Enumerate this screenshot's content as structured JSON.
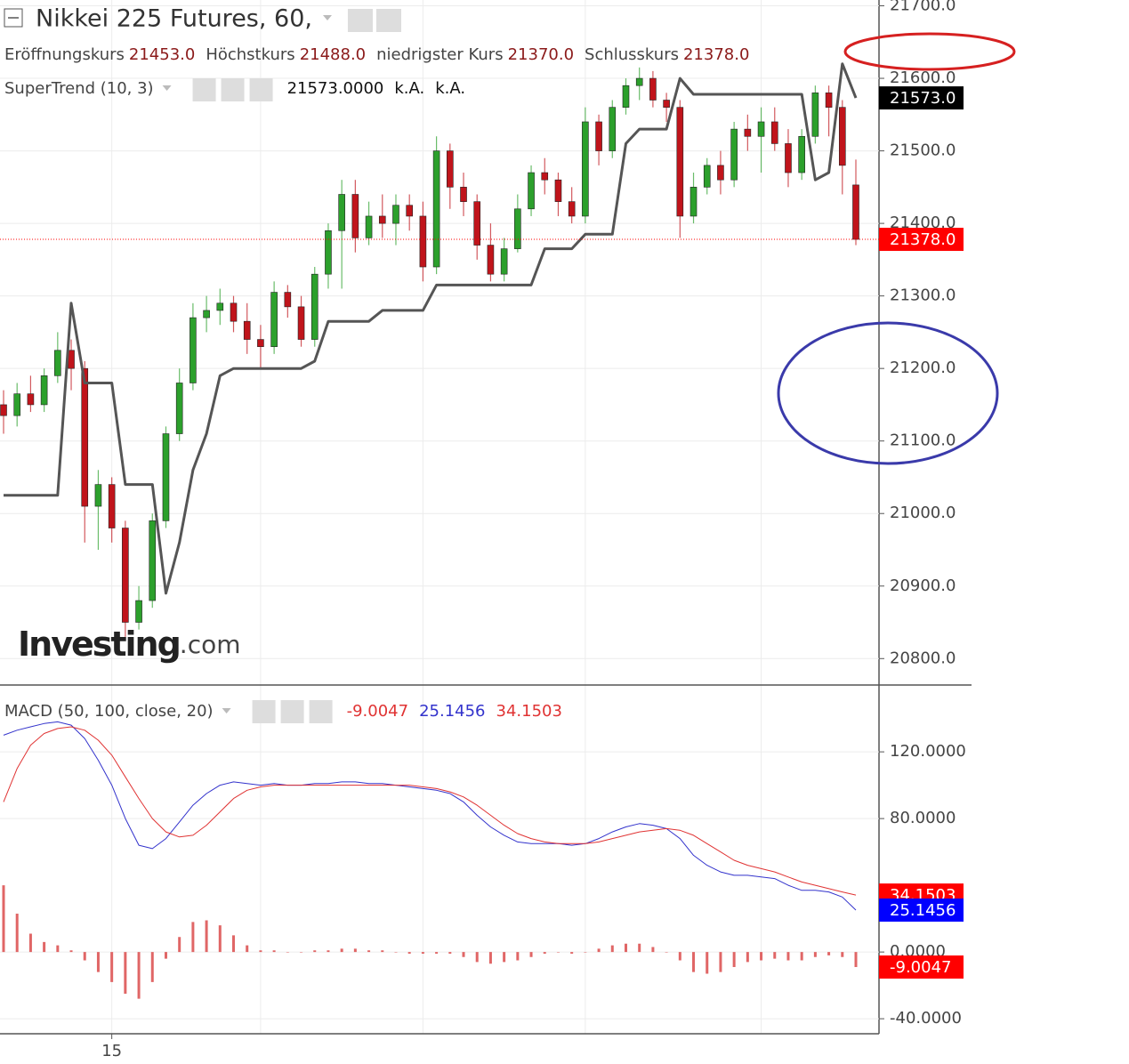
{
  "chart_data": [
    {
      "type": "candlestick",
      "title": "Nikkei 225 Futures, 60,",
      "ohlc_legend": [
        {
          "label": "Eröffnungskurs",
          "value": "21453.0"
        },
        {
          "label": "Höchstkurs",
          "value": "21488.0"
        },
        {
          "label": "niedrigster Kurs",
          "value": "21370.0"
        },
        {
          "label": "Schlusskurs",
          "value": "21378.0"
        }
      ],
      "categories": [
        null,
        null,
        null,
        null,
        null,
        null,
        null,
        null,
        "15",
        null,
        null,
        null,
        null,
        null,
        null,
        null,
        null,
        null,
        null,
        null,
        null,
        null,
        null,
        null,
        null,
        null,
        null,
        null,
        null,
        null,
        null,
        null,
        null,
        null,
        null,
        null,
        null,
        null,
        null,
        null,
        null,
        null,
        null,
        null,
        null,
        null,
        null,
        null,
        null,
        null,
        null,
        null,
        null,
        null,
        null,
        null,
        null,
        null,
        null,
        null,
        null,
        null,
        null,
        null
      ],
      "open": [
        21150,
        21135,
        21165,
        21150,
        21190,
        21225,
        21200,
        21010,
        21040,
        20980,
        20850,
        20880,
        20990,
        21110,
        21180,
        21270,
        21280,
        21290,
        21265,
        21240,
        21230,
        21305,
        21285,
        21240,
        21330,
        21390,
        21440,
        21380,
        21410,
        21400,
        21425,
        21410,
        21340,
        21500,
        21450,
        21430,
        21370,
        21330,
        21365,
        21420,
        21470,
        21460,
        21430,
        21410,
        21540,
        21500,
        21560,
        21590,
        21600,
        21570,
        21560,
        21410,
        21450,
        21480,
        21460,
        21530,
        21520,
        21540,
        21510,
        21470,
        21520,
        21580,
        21560,
        21453
      ],
      "high": [
        21170,
        21180,
        21190,
        21200,
        21250,
        21240,
        21210,
        21060,
        21050,
        20990,
        20900,
        21000,
        21120,
        21200,
        21290,
        21300,
        21310,
        21300,
        21290,
        21260,
        21320,
        21315,
        21300,
        21340,
        21400,
        21460,
        21460,
        21430,
        21440,
        21440,
        21440,
        21430,
        21520,
        21510,
        21470,
        21440,
        21400,
        21380,
        21440,
        21480,
        21490,
        21470,
        21450,
        21560,
        21550,
        21570,
        21600,
        21615,
        21610,
        21580,
        21570,
        21470,
        21490,
        21500,
        21540,
        21550,
        21560,
        21560,
        21530,
        21530,
        21590,
        21590,
        21570,
        21488
      ],
      "low": [
        21110,
        21120,
        21140,
        21140,
        21180,
        21170,
        20960,
        20950,
        20960,
        20830,
        20840,
        20870,
        20980,
        21100,
        21170,
        21250,
        21260,
        21250,
        21220,
        21200,
        21220,
        21270,
        21230,
        21230,
        21310,
        21310,
        21360,
        21370,
        21380,
        21370,
        21390,
        21320,
        21330,
        21420,
        21410,
        21350,
        21320,
        21320,
        21360,
        21410,
        21440,
        21410,
        21400,
        21400,
        21480,
        21490,
        21550,
        21570,
        21560,
        21540,
        21380,
        21400,
        21440,
        21440,
        21450,
        21500,
        21470,
        21500,
        21450,
        21460,
        21510,
        21520,
        21440,
        21370
      ],
      "close": [
        21135,
        21165,
        21150,
        21190,
        21225,
        21200,
        21010,
        21040,
        20980,
        20850,
        20880,
        20990,
        21110,
        21180,
        21270,
        21280,
        21290,
        21265,
        21240,
        21230,
        21305,
        21285,
        21240,
        21330,
        21390,
        21440,
        21380,
        21410,
        21400,
        21425,
        21410,
        21340,
        21500,
        21450,
        21430,
        21370,
        21330,
        21365,
        21420,
        21470,
        21460,
        21430,
        21410,
        21540,
        21500,
        21560,
        21590,
        21600,
        21570,
        21560,
        21410,
        21450,
        21480,
        21460,
        21530,
        21520,
        21540,
        21510,
        21470,
        21520,
        21580,
        21560,
        21480,
        21378
      ],
      "up_color": "#2ca02c",
      "down_color": "#c0141b",
      "series": [
        {
          "name": "SuperTrend (10, 3)",
          "color": "#555555",
          "values": [
            21025,
            21025,
            21025,
            21025,
            21025,
            21290,
            21180,
            21180,
            21180,
            21040,
            21040,
            21040,
            20890,
            20960,
            21060,
            21110,
            21190,
            21200,
            21200,
            21200,
            21200,
            21200,
            21200,
            21210,
            21265,
            21265,
            21265,
            21265,
            21280,
            21280,
            21280,
            21280,
            21315,
            21315,
            21315,
            21315,
            21315,
            21315,
            21315,
            21315,
            21365,
            21365,
            21365,
            21385,
            21385,
            21385,
            21510,
            21530,
            21530,
            21530,
            21600,
            21578,
            21578,
            21578,
            21578,
            21578,
            21578,
            21578,
            21578,
            21578,
            21460,
            21470,
            21620,
            21573
          ],
          "legend_values": [
            "21573.0000",
            "k.A.",
            "k.A."
          ]
        }
      ],
      "badges": [
        {
          "value": 21573,
          "label": "21573.0",
          "color": "#000000"
        },
        {
          "value": 21378,
          "label": "21378.0",
          "color": "#ff0000"
        }
      ],
      "ylim": [
        20766,
        21708
      ],
      "yticks": [
        {
          "value": 21700,
          "label": "21700.0"
        },
        {
          "value": 21600,
          "label": "21600.0"
        },
        {
          "value": 21500,
          "label": "21500.0"
        },
        {
          "value": 21400,
          "label": "21400.0"
        },
        {
          "value": 21300,
          "label": "21300.0"
        },
        {
          "value": 21200,
          "label": "21200.0"
        },
        {
          "value": 21100,
          "label": "21100.0"
        },
        {
          "value": 21000,
          "label": "21000.0"
        },
        {
          "value": 20900,
          "label": "20900.0"
        },
        {
          "value": 20800,
          "label": "20800.0"
        }
      ],
      "grid": true,
      "watermark": [
        "Investing",
        ".com"
      ]
    },
    {
      "type": "line",
      "title": "MACD (50, 100, close, 20)",
      "series": [
        {
          "name": "Histogram",
          "style": "histogram",
          "color": "#e06666",
          "legend_value": "-9.0047",
          "values": [
            40,
            23,
            11,
            6,
            4,
            1,
            -5,
            -12,
            -18,
            -25,
            -28,
            -18,
            -4,
            9,
            18,
            19,
            16,
            10,
            4,
            1,
            1,
            0,
            0,
            1,
            1,
            2,
            2,
            1,
            1,
            0,
            -1,
            -1,
            -1,
            -1,
            -3,
            -6,
            -7,
            -6,
            -5,
            -3,
            -1,
            0,
            -1,
            0,
            2,
            4,
            5,
            5,
            3,
            0,
            -5,
            -12,
            -13,
            -12,
            -9,
            -6,
            -5,
            -4,
            -5,
            -5,
            -3,
            -2,
            -3,
            -9.0047
          ]
        },
        {
          "name": "MACD",
          "style": "line",
          "color": "#3333cc",
          "legend_value": "25.1456",
          "values": [
            130,
            133,
            135,
            137,
            138,
            136,
            128,
            115,
            100,
            80,
            64,
            62,
            68,
            78,
            88,
            95,
            100,
            102,
            101,
            100,
            101,
            100,
            100,
            101,
            101,
            102,
            102,
            101,
            101,
            100,
            99,
            98,
            97,
            95,
            90,
            82,
            75,
            70,
            66,
            65,
            65,
            65,
            64,
            65,
            68,
            72,
            75,
            77,
            76,
            74,
            68,
            58,
            52,
            48,
            46,
            46,
            45,
            44,
            40,
            37,
            37,
            36,
            33,
            25.1456
          ]
        },
        {
          "name": "Signal",
          "style": "line",
          "color": "#e03333",
          "legend_value": "34.1503",
          "values": [
            90,
            110,
            124,
            131,
            134,
            135,
            133,
            127,
            118,
            105,
            92,
            80,
            72,
            69,
            70,
            76,
            84,
            92,
            97,
            99,
            100,
            100,
            100,
            100,
            100,
            100,
            100,
            100,
            100,
            100,
            100,
            99,
            98,
            96,
            93,
            88,
            82,
            76,
            71,
            68,
            66,
            65,
            65,
            65,
            66,
            68,
            70,
            72,
            73,
            74,
            73,
            70,
            65,
            60,
            55,
            52,
            50,
            48,
            45,
            42,
            40,
            38,
            36,
            34.1503
          ]
        }
      ],
      "badges": [
        {
          "value": 34.1503,
          "label": "34.1503",
          "color": "#ff0000"
        },
        {
          "value": 25.1456,
          "label": "25.1456",
          "color": "#0000ff"
        },
        {
          "value": -9.0047,
          "label": "-9.0047",
          "color": "#ff0000"
        }
      ],
      "ylim": [
        -49,
        159
      ],
      "yticks": [
        {
          "value": 120,
          "label": "120.0000"
        },
        {
          "value": 80,
          "label": "80.0000"
        },
        {
          "value": 0,
          "label": "0.0000"
        },
        {
          "value": -40,
          "label": "-40.0000"
        }
      ],
      "grid": true
    }
  ]
}
